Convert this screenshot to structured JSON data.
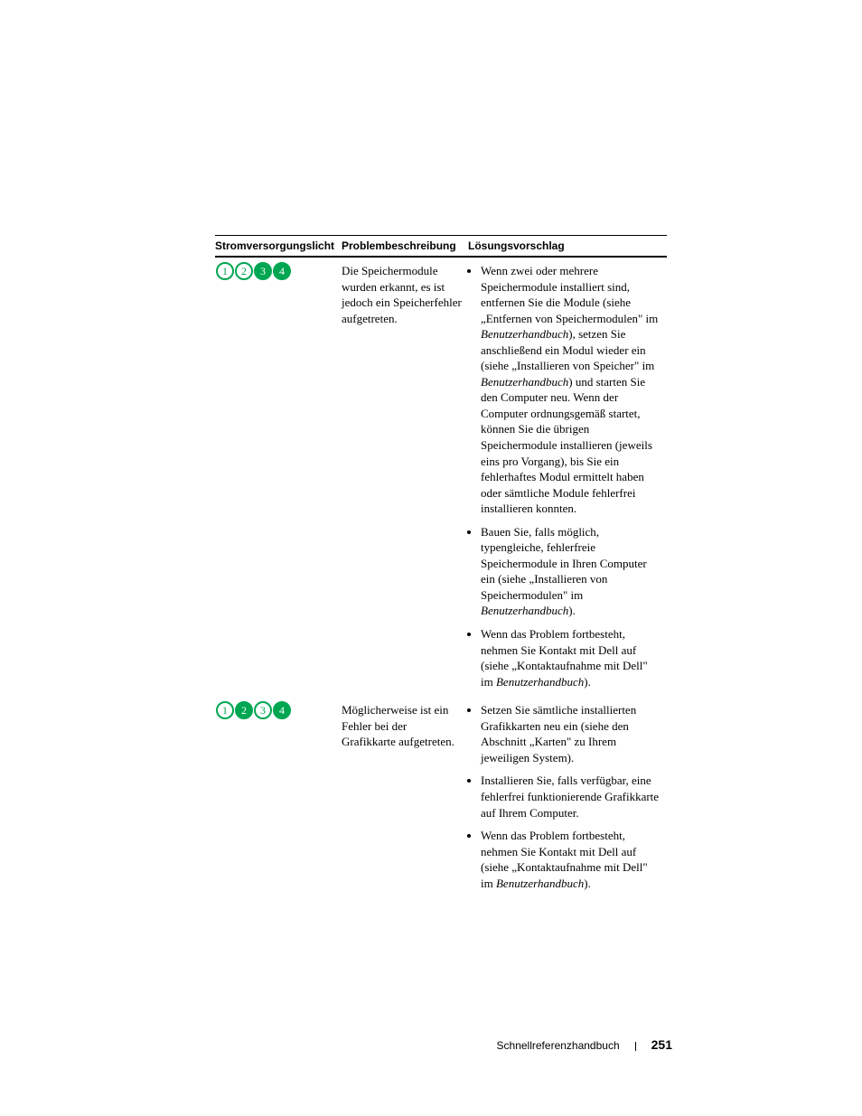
{
  "colors": {
    "led_on": "#00a651",
    "led_off_stroke": "#00a651",
    "led_text": "#00a651",
    "led_text_on": "#ffffff",
    "page_bg": "#ffffff",
    "text": "#000000",
    "rule": "#000000"
  },
  "table": {
    "headers": {
      "col1": "Stromversorgungslicht",
      "col2": "Problembeschreibung",
      "col3": "Lösungsvorschlag"
    },
    "rows": [
      {
        "leds": [
          false,
          false,
          true,
          true
        ],
        "problem": "Die Speichermodule wurden erkannt, es ist jedoch ein Speicherfehler aufgetreten.",
        "solutions": [
          {
            "pre": "Wenn zwei oder mehrere Speichermodule installiert sind, entfernen Sie die Module (siehe „Entfernen von Speichermodulen\" im ",
            "ital1": "Benutzerhandbuch",
            "mid1": "), setzen Sie anschließend ein Modul wieder ein (siehe „Installieren von Speicher\" im ",
            "ital2": "Benutzerhandbuch",
            "post": ") und starten Sie den Computer neu. Wenn der Computer ordnungsgemäß startet, können Sie die übrigen Speichermodule installieren (jeweils eins pro Vorgang), bis Sie ein fehlerhaftes Modul ermittelt haben oder sämtliche Module fehlerfrei installieren konnten."
          },
          {
            "pre": "Bauen Sie, falls möglich, typengleiche, fehlerfreie Speichermodule in Ihren Computer ein (siehe „Installieren von Speichermodulen\" im ",
            "ital1": "Benutzerhandbuch",
            "post": ")."
          },
          {
            "pre": "Wenn das Problem fortbesteht, nehmen Sie Kontakt mit Dell auf (siehe „Kontaktaufnahme mit Dell\" im ",
            "ital1": "Benutzerhandbuch",
            "post": ")."
          }
        ]
      },
      {
        "leds": [
          false,
          true,
          false,
          true
        ],
        "problem": "Möglicherweise ist ein Fehler bei der Grafikkarte aufgetreten.",
        "solutions": [
          {
            "pre": "Setzen Sie sämtliche installierten Grafikkarten neu ein (siehe den Abschnitt „Karten\" zu Ihrem jeweiligen System)."
          },
          {
            "pre": "Installieren Sie, falls verfügbar, eine fehlerfrei funktionierende Grafikkarte auf Ihrem Computer."
          },
          {
            "pre": "Wenn das Problem fortbesteht, nehmen Sie Kontakt mit Dell auf (siehe „Kontaktaufnahme mit Dell\" im ",
            "ital1": "Benutzerhandbuch",
            "post": ")."
          }
        ]
      }
    ]
  },
  "footer": {
    "title": "Schnellreferenzhandbuch",
    "page": "251"
  }
}
